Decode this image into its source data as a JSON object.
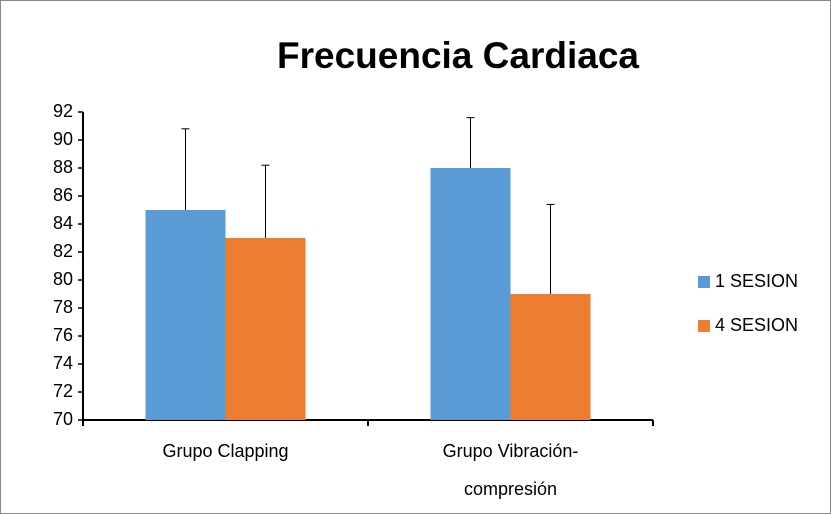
{
  "chart_data": {
    "type": "bar",
    "title": "Frecuencia Cardiaca",
    "categories": [
      "Grupo Clapping",
      "Grupo Vibración-compresión"
    ],
    "series": [
      {
        "name": "1 SESION",
        "color": "#5b9bd5",
        "values": [
          85,
          88
        ],
        "errors": [
          5.8,
          3.6
        ]
      },
      {
        "name": "4 SESION",
        "color": "#ed7d31",
        "values": [
          83,
          79
        ],
        "errors": [
          5.2,
          6.4
        ]
      }
    ],
    "ylim": [
      70,
      92
    ],
    "yticks": [
      70,
      72,
      74,
      76,
      78,
      80,
      82,
      84,
      86,
      88,
      90,
      92
    ],
    "grid": false,
    "legend": "right"
  }
}
